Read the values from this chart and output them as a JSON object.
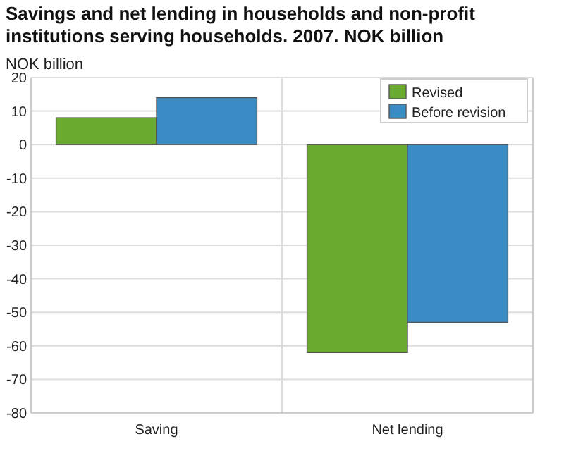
{
  "chart_data": {
    "type": "bar",
    "title": "Savings and net lending in households and non-profit institutions serving households. 2007. NOK billion",
    "ylabel": "NOK billion",
    "categories": [
      "Saving",
      "Net lending"
    ],
    "series": [
      {
        "name": "Revised",
        "color": "#6aaa2e",
        "values": [
          8,
          -62
        ]
      },
      {
        "name": "Before revision",
        "color": "#3a8cc4",
        "values": [
          14,
          -53
        ]
      }
    ],
    "ylim": [
      -80,
      20
    ],
    "yticks": [
      -80,
      -70,
      -60,
      -50,
      -40,
      -30,
      -20,
      -10,
      0,
      10,
      20
    ],
    "grid": true,
    "legend": "top right"
  }
}
